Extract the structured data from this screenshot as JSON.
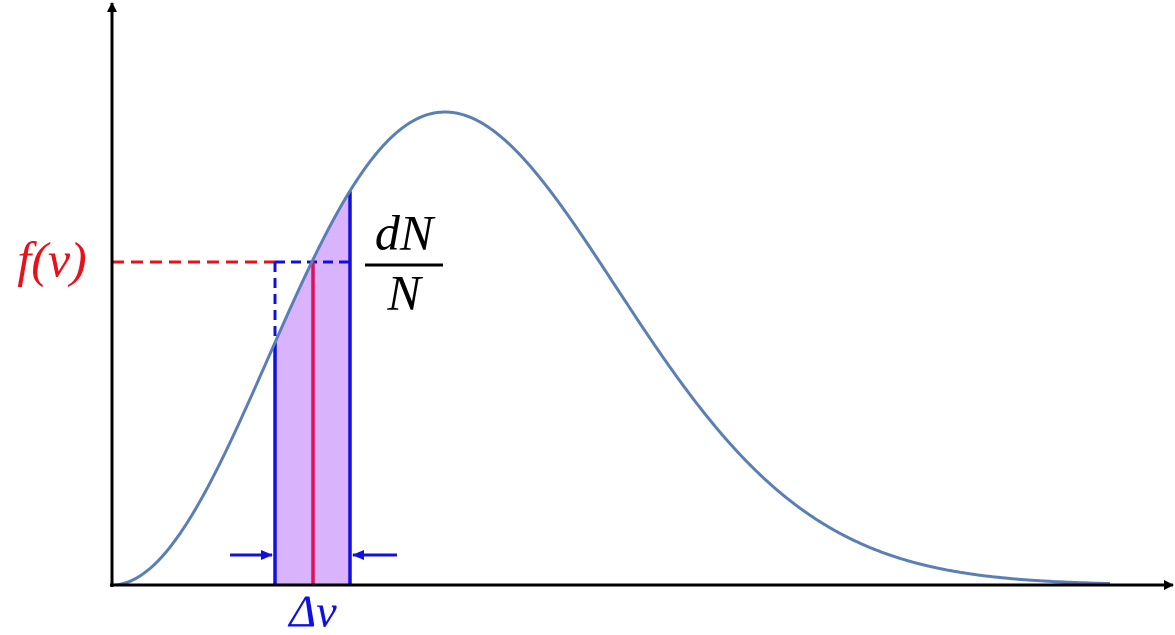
{
  "labels": {
    "y_label": "f(v)",
    "fraction_numerator": "dN",
    "fraction_denominator": "N",
    "interval": "Δv"
  }
}
